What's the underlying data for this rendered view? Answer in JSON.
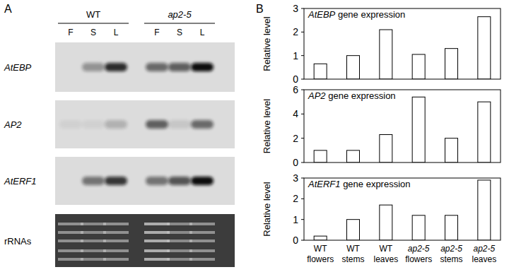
{
  "panel_a": {
    "label": "A",
    "groups": [
      "WT",
      "ap2-5"
    ],
    "lanes": [
      "F",
      "S",
      "L",
      "F",
      "S",
      "L"
    ],
    "blots": [
      {
        "name": "AtEBP",
        "intensities": [
          0,
          0.35,
          0.85,
          0.55,
          0.6,
          1
        ]
      },
      {
        "name": "AP2",
        "intensities": [
          0.05,
          0.05,
          0.2,
          0.6,
          0.1,
          0.55
        ]
      },
      {
        "name": "AtERF1",
        "intensities": [
          0,
          0.5,
          0.8,
          0.5,
          0.65,
          1
        ]
      },
      {
        "name": "rRNAs",
        "intensities": [
          0.6,
          0.55,
          0.6,
          0.8,
          0.55,
          0.6
        ]
      }
    ]
  },
  "panel_b": {
    "label": "B"
  },
  "chart_data": [
    {
      "type": "bar",
      "title": "AtEBP gene expression",
      "y_label": "Relative level",
      "categories": [
        null,
        null,
        null,
        null,
        null,
        null
      ],
      "values": [
        0.65,
        1.0,
        2.1,
        1.05,
        1.3,
        2.65
      ],
      "color": "#ffffff",
      "ylim": [
        0,
        3
      ],
      "yticks": [
        0,
        1,
        2,
        3
      ],
      "grid": false
    },
    {
      "type": "bar",
      "title": "AP2 gene expression",
      "y_label": "Relative level",
      "categories": [
        null,
        null,
        null,
        null,
        null,
        null
      ],
      "values": [
        1.0,
        1.0,
        2.3,
        5.4,
        2.0,
        5.0
      ],
      "color": "#ffffff",
      "ylim": [
        0,
        6
      ],
      "yticks": [
        0,
        2,
        4,
        6
      ],
      "grid": false
    },
    {
      "type": "bar",
      "title": "AtERF1 gene expression",
      "y_label": "Relative level",
      "categories": [
        "WT flowers",
        "WT stems",
        "WT leaves",
        "ap2-5 flowers",
        "ap2-5 stems",
        "ap2-5 leaves"
      ],
      "values": [
        0.2,
        1.0,
        1.7,
        1.2,
        1.2,
        2.9
      ],
      "color": "#ffffff",
      "ylim": [
        0,
        3
      ],
      "yticks": [
        0,
        1,
        2,
        3
      ],
      "grid": false
    }
  ]
}
